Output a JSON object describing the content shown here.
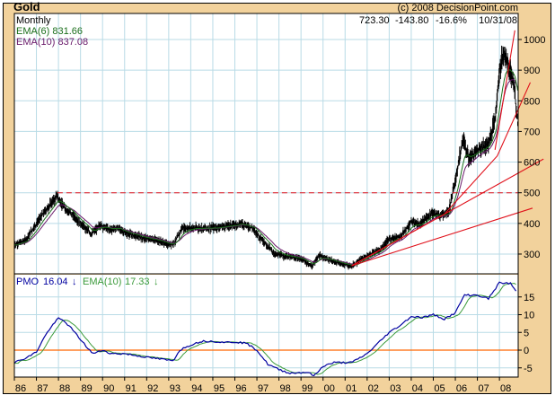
{
  "chart_data": {
    "type": "bar",
    "title": "Gold",
    "copyright": "(c) 2008 DecisionPoint.com",
    "period": "Monthly",
    "last": {
      "close": "723.30",
      "change": "-143.80",
      "pct": "-16.6%",
      "date": "10/31/08"
    },
    "legend": {
      "ema6": "EMA(6) 831.66",
      "ema10": "EMA(10) 837.08"
    },
    "price_ylim": [
      240,
      1040
    ],
    "price_ticks": [
      300,
      400,
      500,
      600,
      700,
      800,
      900,
      1000
    ],
    "price_tick_labels": [
      "300",
      "400",
      "500",
      "600",
      "700",
      "800",
      "900",
      "1000"
    ],
    "xlim": [
      1986.0,
      2008.85
    ],
    "x_tick_labels": [
      "86",
      "87",
      "88",
      "89",
      "90",
      "91",
      "92",
      "93",
      "94",
      "95",
      "96",
      "97",
      "98",
      "99",
      "00",
      "01",
      "02",
      "03",
      "04",
      "05",
      "06",
      "07",
      "08"
    ],
    "price_anchors": [
      [
        1986.0,
        330
      ],
      [
        1986.5,
        345
      ],
      [
        1987.0,
        400
      ],
      [
        1987.5,
        450
      ],
      [
        1987.95,
        490
      ],
      [
        1988.2,
        455
      ],
      [
        1988.6,
        430
      ],
      [
        1989.0,
        400
      ],
      [
        1989.5,
        365
      ],
      [
        1989.9,
        395
      ],
      [
        1990.3,
        380
      ],
      [
        1990.7,
        385
      ],
      [
        1991.0,
        370
      ],
      [
        1991.5,
        360
      ],
      [
        1992.0,
        350
      ],
      [
        1992.5,
        345
      ],
      [
        1993.0,
        330
      ],
      [
        1993.3,
        340
      ],
      [
        1993.6,
        385
      ],
      [
        1994.0,
        385
      ],
      [
        1995.0,
        385
      ],
      [
        1996.0,
        395
      ],
      [
        1996.3,
        400
      ],
      [
        1996.8,
        385
      ],
      [
        1997.2,
        350
      ],
      [
        1997.8,
        300
      ],
      [
        1998.5,
        290
      ],
      [
        1999.0,
        285
      ],
      [
        1999.5,
        260
      ],
      [
        1999.8,
        295
      ],
      [
        2000.3,
        280
      ],
      [
        2001.0,
        265
      ],
      [
        2001.3,
        262
      ],
      [
        2002.0,
        295
      ],
      [
        2002.6,
        315
      ],
      [
        2003.0,
        350
      ],
      [
        2003.5,
        355
      ],
      [
        2004.0,
        405
      ],
      [
        2004.4,
        395
      ],
      [
        2004.9,
        435
      ],
      [
        2005.3,
        425
      ],
      [
        2005.7,
        440
      ],
      [
        2006.0,
        540
      ],
      [
        2006.35,
        680
      ],
      [
        2006.6,
        610
      ],
      [
        2007.0,
        640
      ],
      [
        2007.5,
        660
      ],
      [
        2007.8,
        740
      ],
      [
        2008.0,
        900
      ],
      [
        2008.2,
        960
      ],
      [
        2008.5,
        890
      ],
      [
        2008.65,
        860
      ],
      [
        2008.83,
        723
      ]
    ],
    "reference_line": {
      "value": 500,
      "from": 1987.95,
      "style": "dashed"
    },
    "trendlines": [
      {
        "from": [
          2001.3,
          262
        ],
        "to": [
          2009.5,
          450
        ]
      },
      {
        "from": [
          2001.3,
          262
        ],
        "to": [
          2010.0,
          610
        ]
      },
      {
        "from": [
          2001.3,
          262
        ],
        "to": [
          2005.5,
          430
        ],
        "then": [
          2007.9,
          620
        ],
        "to2": [
          2009.4,
          860
        ]
      },
      {
        "from": [
          2007.8,
          640
        ],
        "to": [
          2008.7,
          1030
        ]
      }
    ],
    "pmo": {
      "label": "PMO",
      "value": "16.04",
      "ema_label": "EMA(10)",
      "ema_value": "17.33",
      "ylim": [
        -9,
        22
      ],
      "ticks": [
        -5,
        0,
        5,
        10,
        15
      ],
      "tick_labels": [
        "-5",
        "0",
        "5",
        "10",
        "15"
      ],
      "anchors": [
        [
          1986.0,
          -3.5
        ],
        [
          1986.6,
          -2
        ],
        [
          1987.0,
          -0.5
        ],
        [
          1987.3,
          3
        ],
        [
          1987.6,
          6
        ],
        [
          1988.0,
          9
        ],
        [
          1988.3,
          8
        ],
        [
          1988.6,
          6
        ],
        [
          1989.0,
          3
        ],
        [
          1989.4,
          0
        ],
        [
          1989.6,
          -1
        ],
        [
          1990.0,
          0
        ],
        [
          1990.4,
          -1
        ],
        [
          1991.0,
          -1
        ],
        [
          1991.5,
          -1.5
        ],
        [
          1992.0,
          -2
        ],
        [
          1992.6,
          -2.5
        ],
        [
          1993.2,
          -3
        ],
        [
          1993.5,
          0
        ],
        [
          1994.0,
          1.5
        ],
        [
          1994.5,
          2.5
        ],
        [
          1995.0,
          2.5
        ],
        [
          1995.6,
          2.2
        ],
        [
          1996.0,
          2.3
        ],
        [
          1996.5,
          2
        ],
        [
          1997.0,
          0
        ],
        [
          1997.5,
          -4
        ],
        [
          1998.0,
          -5.5
        ],
        [
          1998.5,
          -6.5
        ],
        [
          1999.3,
          -6.2
        ],
        [
          1999.6,
          -7.3
        ],
        [
          2000.0,
          -4.5
        ],
        [
          2000.5,
          -3.5
        ],
        [
          2001.3,
          -3.5
        ],
        [
          2002.0,
          -1
        ],
        [
          2002.5,
          2
        ],
        [
          2003.0,
          5
        ],
        [
          2003.5,
          7
        ],
        [
          2004.0,
          9.5
        ],
        [
          2004.5,
          9.2
        ],
        [
          2005.0,
          10
        ],
        [
          2005.5,
          8.8
        ],
        [
          2006.0,
          10.5
        ],
        [
          2006.4,
          15.5
        ],
        [
          2007.0,
          15.5
        ],
        [
          2007.5,
          14.5
        ],
        [
          2008.0,
          19
        ],
        [
          2008.5,
          18.8
        ],
        [
          2008.83,
          16
        ]
      ]
    }
  },
  "colors": {
    "frame": "#f2d29c",
    "grid": "#b9dbe6",
    "bars": "#000000",
    "ema6": "#1a6e1a",
    "ema10": "#6a1a6a",
    "trend": "#e0101a",
    "pmo": "#0000a0",
    "pmo_ema": "#3a9a3a",
    "zero": "#ff6600"
  }
}
